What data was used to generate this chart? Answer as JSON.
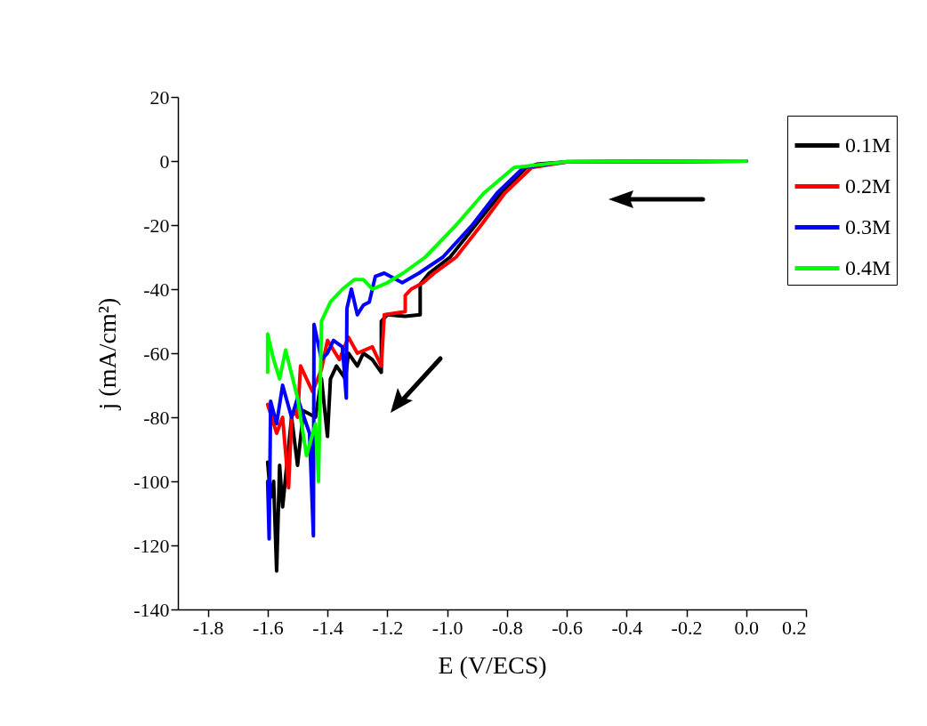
{
  "chart_data": {
    "type": "line",
    "xlabel": "E (V/ECS)",
    "ylabel": "j (mA/cm²)",
    "xlim": [
      -1.9,
      0.2
    ],
    "xticks": [
      -1.8,
      -1.6,
      -1.4,
      -1.2,
      {
        "value": -1,
        "label": "-1.0"
      },
      -0.8,
      -0.6,
      -0.4,
      -0.2,
      {
        "value": 0,
        "label": "0.0"
      },
      0.2
    ],
    "ylim": [
      -140,
      20
    ],
    "yticks": [
      -140,
      -120,
      -100,
      -80,
      -60,
      -40,
      -20,
      0,
      20
    ],
    "grid": false,
    "legend": "top right",
    "marker": "none",
    "line_style": "solid",
    "series": [
      {
        "name": "0.1M",
        "color": "#000000",
        "x": [
          0,
          -0.6,
          -0.7,
          -0.735,
          -0.82,
          -0.905,
          -0.99,
          -1.06,
          -1.09,
          -1.09,
          -1.14,
          -1.2,
          -1.22,
          -1.22,
          -1.25,
          -1.28,
          -1.3,
          -1.33,
          -1.34,
          -1.37,
          -1.39,
          -1.4,
          -1.42,
          -1.44,
          -1.48,
          -1.5,
          -1.52,
          -1.55,
          -1.56,
          -1.57,
          -1.58,
          -1.59,
          -1.6
        ],
        "values": [
          0,
          -0.3,
          -1,
          -2,
          -10,
          -20,
          -30,
          -35,
          -38.5,
          -48,
          -48.5,
          -48,
          -50,
          -66,
          -62,
          -60,
          -64,
          -60,
          -68,
          -64,
          -68,
          -86,
          -68,
          -80,
          -78,
          -95,
          -80,
          -108,
          -95,
          -128,
          -100,
          -105,
          -94
        ]
      },
      {
        "name": "0.2M",
        "color": "#ff0000",
        "x": [
          0,
          -0.6,
          -0.717,
          -0.807,
          -0.886,
          -0.97,
          -1.043,
          -1.08,
          -1.12,
          -1.14,
          -1.14,
          -1.21,
          -1.22,
          -1.25,
          -1.3,
          -1.33,
          -1.36,
          -1.4,
          -1.42,
          -1.45,
          -1.49,
          -1.5,
          -1.51,
          -1.52,
          -1.53,
          -1.55,
          -1.57,
          -1.6
        ],
        "values": [
          0,
          -0.3,
          -2,
          -10,
          -20,
          -30,
          -35,
          -38,
          -40,
          -42,
          -47,
          -48,
          -64,
          -58,
          -60,
          -55,
          -62,
          -56,
          -65,
          -72,
          -64,
          -80,
          -78,
          -80,
          -102,
          -80,
          -85,
          -76
        ]
      },
      {
        "name": "0.3M",
        "color": "#0000ff",
        "x": [
          0,
          -0.6,
          -0.744,
          -0.833,
          -0.916,
          -1.014,
          -1.094,
          -1.15,
          -1.21,
          -1.24,
          -1.26,
          -1.28,
          -1.3,
          -1.32,
          -1.335,
          -1.337,
          -1.35,
          -1.38,
          -1.4,
          -1.42,
          -1.445,
          -1.447,
          -1.46,
          -1.5,
          -1.52,
          -1.55,
          -1.57,
          -1.59,
          -1.595,
          -1.6
        ],
        "values": [
          0,
          -0.2,
          -2,
          -10,
          -20,
          -30,
          -35,
          -38,
          -35,
          -36,
          -44,
          -45,
          -48,
          -40,
          -46,
          -74,
          -58,
          -56,
          -60,
          -62,
          -51,
          -117,
          -85,
          -74,
          -80,
          -70,
          -82,
          -75,
          -118,
          -100
        ]
      },
      {
        "name": "0.4M",
        "color": "#00ff00",
        "x": [
          0,
          -0.6,
          -0.776,
          -0.877,
          -0.97,
          -1.073,
          -1.147,
          -1.2,
          -1.25,
          -1.28,
          -1.31,
          -1.35,
          -1.39,
          -1.42,
          -1.43,
          -1.44,
          -1.47,
          -1.5,
          -1.54,
          -1.56,
          -1.58,
          -1.6,
          -1.6
        ],
        "values": [
          0,
          -0.2,
          -2,
          -10,
          -20,
          -30,
          -35,
          -38,
          -40,
          -37,
          -37,
          -40,
          -44,
          -50,
          -100,
          -82,
          -92,
          -74,
          -59,
          -68,
          -62,
          -54,
          -66
        ]
      }
    ]
  }
}
